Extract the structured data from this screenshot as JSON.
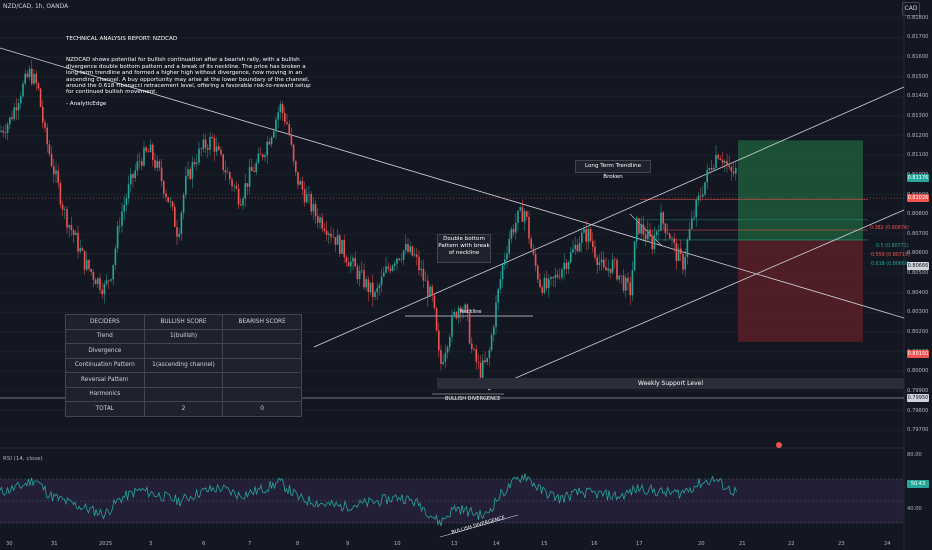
{
  "header": {
    "symbol": "NZD/CAD, 1h, OANDA",
    "currency": "CAD"
  },
  "report": {
    "title": "TECHNICAL ANALYSIS REPORT: NZDCAD",
    "body": "NZDCAD shows potential for bullish continuation after a bearish rally, with a bullish divergence double bottom pattern and a break of its neckline. The price has broken a long-term trendline and formed a higher high without divergence, now moving in an ascending channel. A buy opportunity may arise at the lower boundary of the channel, around the 0.618 Fibonacci retracement level, offering a favorable risk-to-reward setup for continued bullish movement.",
    "author": "- AnalyticEdge"
  },
  "table": {
    "headers": [
      "DECIDERS",
      "BULLISH SCORE",
      "BEARISH SCORE"
    ],
    "rows": [
      [
        "Trend",
        "1(bullish)",
        ""
      ],
      [
        "Divergence",
        "",
        ""
      ],
      [
        "Continuation Pattern",
        "1(ascending channel)",
        ""
      ],
      [
        "Reversal Pattern",
        "",
        ""
      ],
      [
        "Harmonics",
        "",
        ""
      ],
      [
        "TOTAL",
        "2",
        "0"
      ]
    ]
  },
  "annotations": {
    "double_bottom": "Double bottom Pattern with break of neckline",
    "long_term_break": "Long Term Trendline Broken",
    "neckline": "Neckline",
    "bullish_divergence": "BULLISH DIVERGENCE",
    "bullish_divergence_rsi": "BULLISH DIVERGENCE",
    "weekly_support": "Weekly Support Level"
  },
  "fib": {
    "f382": "0.382 (0.80874)",
    "f5": "0.5 (0.80771)",
    "f559": "0.559 (0.80719)",
    "f618": "0.618 (0.80669)"
  },
  "rsi": {
    "label": "RSI (14, close)",
    "values_axis": [
      "80.00",
      "40.00"
    ],
    "current": "50.43"
  },
  "colors": {
    "bg": "#131722",
    "up": "#26a69a",
    "down": "#ef5350",
    "tp_zone": "#1e5a3a",
    "sl_zone": "#5a1e26",
    "rsi_line": "#26a69a",
    "rsi_band": "#2a2440"
  },
  "chart_data": {
    "type": "candlestick",
    "price_axis": [
      "0.81800",
      "0.81700",
      "0.81600",
      "0.81500",
      "0.81400",
      "0.81300",
      "0.81200",
      "0.81100",
      "0.81000",
      "0.80900",
      "0.80800",
      "0.80700",
      "0.80600",
      "0.80500",
      "0.80400",
      "0.80300",
      "0.80200",
      "0.80100",
      "0.80000",
      "0.79900",
      "0.79800",
      "0.79700"
    ],
    "price_tags": {
      "target": "0.81176",
      "current": "0.81026",
      "entry": "0.80666",
      "stop": "0.80150",
      "low": "0.79950"
    },
    "dates": [
      "30",
      "31",
      "2025",
      "3",
      "6",
      "7",
      "8",
      "9",
      "10",
      "13",
      "14",
      "15",
      "16",
      "17",
      "20",
      "21",
      "22",
      "23",
      "24"
    ],
    "ylim": [
      0.7965,
      0.8185
    ],
    "path_points": [
      [
        0,
        0.8122
      ],
      [
        10,
        0.8128
      ],
      [
        20,
        0.8142
      ],
      [
        30,
        0.8152
      ],
      [
        38,
        0.8144
      ],
      [
        45,
        0.812
      ],
      [
        55,
        0.81
      ],
      [
        65,
        0.808
      ],
      [
        75,
        0.8068
      ],
      [
        85,
        0.8055
      ],
      [
        95,
        0.8048
      ],
      [
        105,
        0.8042
      ],
      [
        112,
        0.8052
      ],
      [
        120,
        0.8078
      ],
      [
        130,
        0.8095
      ],
      [
        140,
        0.8108
      ],
      [
        150,
        0.8112
      ],
      [
        160,
        0.81
      ],
      [
        170,
        0.8085
      ],
      [
        178,
        0.807
      ],
      [
        185,
        0.8095
      ],
      [
        195,
        0.8108
      ],
      [
        205,
        0.8115
      ],
      [
        212,
        0.8118
      ],
      [
        220,
        0.8108
      ],
      [
        230,
        0.8098
      ],
      [
        240,
        0.8088
      ],
      [
        250,
        0.81
      ],
      [
        260,
        0.8108
      ],
      [
        270,
        0.812
      ],
      [
        280,
        0.8135
      ],
      [
        288,
        0.8125
      ],
      [
        295,
        0.81
      ],
      [
        305,
        0.809
      ],
      [
        315,
        0.808
      ],
      [
        325,
        0.8075
      ],
      [
        335,
        0.8068
      ],
      [
        345,
        0.806
      ],
      [
        355,
        0.8052
      ],
      [
        365,
        0.8045
      ],
      [
        375,
        0.8038
      ],
      [
        385,
        0.805
      ],
      [
        395,
        0.8058
      ],
      [
        405,
        0.8062
      ],
      [
        415,
        0.8058
      ],
      [
        425,
        0.8045
      ],
      [
        433,
        0.8035
      ],
      [
        440,
        0.8002
      ],
      [
        445,
        0.8012
      ],
      [
        452,
        0.8025
      ],
      [
        460,
        0.8035
      ],
      [
        466,
        0.803
      ],
      [
        472,
        0.801
      ],
      [
        480,
        0.8
      ],
      [
        488,
        0.8005
      ],
      [
        495,
        0.803
      ],
      [
        503,
        0.8055
      ],
      [
        510,
        0.807
      ],
      [
        518,
        0.8078
      ],
      [
        525,
        0.8082
      ],
      [
        532,
        0.806
      ],
      [
        540,
        0.8045
      ],
      [
        548,
        0.8042
      ],
      [
        556,
        0.8048
      ],
      [
        564,
        0.8055
      ],
      [
        572,
        0.806
      ],
      [
        580,
        0.8068
      ],
      [
        588,
        0.807
      ],
      [
        596,
        0.806
      ],
      [
        604,
        0.805
      ],
      [
        612,
        0.8055
      ],
      [
        620,
        0.8048
      ],
      [
        630,
        0.804
      ],
      [
        637,
        0.8075
      ],
      [
        645,
        0.807
      ],
      [
        652,
        0.8065
      ],
      [
        660,
        0.8078
      ],
      [
        668,
        0.8072
      ],
      [
        676,
        0.806
      ],
      [
        683,
        0.8055
      ],
      [
        690,
        0.8072
      ],
      [
        697,
        0.8085
      ],
      [
        704,
        0.8095
      ],
      [
        711,
        0.8105
      ],
      [
        718,
        0.8112
      ],
      [
        724,
        0.8108
      ],
      [
        730,
        0.81
      ],
      [
        737,
        0.8102
      ]
    ],
    "rsi_points": [
      [
        0,
        58
      ],
      [
        20,
        63
      ],
      [
        35,
        70
      ],
      [
        50,
        55
      ],
      [
        70,
        48
      ],
      [
        90,
        42
      ],
      [
        105,
        38
      ],
      [
        120,
        52
      ],
      [
        140,
        60
      ],
      [
        160,
        55
      ],
      [
        180,
        50
      ],
      [
        200,
        58
      ],
      [
        220,
        62
      ],
      [
        240,
        55
      ],
      [
        260,
        60
      ],
      [
        280,
        67
      ],
      [
        300,
        52
      ],
      [
        320,
        48
      ],
      [
        340,
        45
      ],
      [
        360,
        47
      ],
      [
        380,
        50
      ],
      [
        400,
        54
      ],
      [
        420,
        47
      ],
      [
        440,
        30
      ],
      [
        455,
        44
      ],
      [
        470,
        40
      ],
      [
        485,
        36
      ],
      [
        500,
        55
      ],
      [
        515,
        68
      ],
      [
        525,
        74
      ],
      [
        540,
        60
      ],
      [
        560,
        52
      ],
      [
        580,
        58
      ],
      [
        600,
        56
      ],
      [
        620,
        54
      ],
      [
        640,
        62
      ],
      [
        660,
        58
      ],
      [
        680,
        57
      ],
      [
        700,
        66
      ],
      [
        715,
        70
      ],
      [
        730,
        60
      ],
      [
        737,
        58
      ]
    ]
  }
}
